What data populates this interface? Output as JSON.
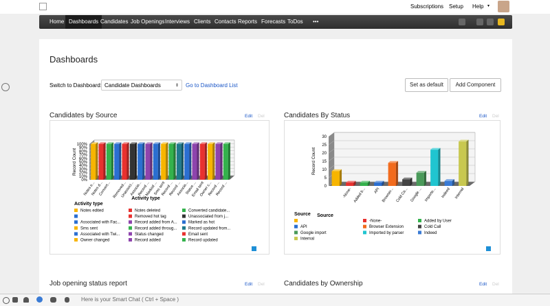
{
  "top_links": [
    "Subscriptions",
    "Setup",
    "Help"
  ],
  "nav": [
    "Home",
    "Dashboards",
    "Candidates",
    "Job Openings",
    "Interviews",
    "Clients",
    "Contacts",
    "Reports",
    "Forecasts",
    "ToDos",
    "•••"
  ],
  "page_title": "Dashboards",
  "switch_label": "Switch to Dashboard:",
  "dashboard_select": "Candidate Dashboards",
  "dashboard_list_link": "Go to Dashboard List",
  "buttons": [
    "Set as default",
    "Add Component"
  ],
  "widget_actions": [
    "Edit",
    "Del"
  ],
  "chart_data": [
    {
      "type": "bar3d",
      "title": "Candidates by Source",
      "ylabel": "Record Count",
      "xlabel": "Activity type",
      "legend_title": "Activity type",
      "categories": [
        "Notes edited",
        "Notes deleted",
        "Converted candidate...",
        null,
        "Removed  hot tag",
        "Unassociated from j...",
        "Associated with Fac...",
        "Record added from A...",
        "Marked as hot",
        "Sms sent",
        "Record added throug...",
        "Record updated from...",
        "Associated with Twi...",
        "Status changed",
        "Email sent",
        "Owner changed",
        "Record added",
        "Record updated"
      ],
      "x_labels": [
        "Notes e...",
        "Notes d...",
        "Convert...",
        null,
        "Removed...",
        "Unassoci...",
        "Associa...",
        "Record ...",
        "Marked ...",
        "Sms sent",
        "Record ...",
        "Record ...",
        "Associa...",
        "Status ...",
        "Email sent",
        "Owner c...",
        "Record ...",
        "Record ..."
      ],
      "values": [
        100,
        100,
        100,
        100,
        100,
        100,
        100,
        100,
        100,
        100,
        100,
        100,
        100,
        100,
        100,
        100,
        100,
        100
      ],
      "colors": [
        "#f7b500",
        "#e8312f",
        "#34b24c",
        "#2b6fd1",
        "#e8312f",
        "#333333",
        "#2b6fd1",
        "#8e44ad",
        "#2b6fd1",
        "#f7b500",
        "#34b24c",
        "#1f7a8c",
        "#2b6fd1",
        "#8e44ad",
        "#e8312f",
        "#f7b500",
        "#8e44ad",
        "#34b24c"
      ],
      "ylim": [
        0,
        100
      ],
      "yticks": [
        {
          "value": 0,
          "label": "0%"
        },
        {
          "value": 10,
          "label": "10%"
        },
        {
          "value": 20,
          "label": "20%"
        },
        {
          "value": 30,
          "label": "30%"
        },
        {
          "value": 40,
          "label": "40%"
        },
        {
          "value": 50,
          "label": "50%"
        },
        {
          "value": 60,
          "label": "60%"
        },
        {
          "value": 70,
          "label": "70%"
        },
        {
          "value": 80,
          "label": "80%"
        },
        {
          "value": 90,
          "label": "90%"
        },
        {
          "value": 100,
          "label": "100%"
        }
      ],
      "grid": true
    },
    {
      "type": "bar3d",
      "title": "Candidates By Status",
      "ylabel": "Record Count",
      "xlabel": "Source",
      "legend_title": "Source",
      "categories": [
        null,
        "-None-",
        "Added by User",
        "API",
        "Browser Extension",
        "Cold Call",
        "Google import",
        "Imported by parser",
        "Indeed",
        "Internal"
      ],
      "x_labels": [
        null,
        "-None-",
        "Added b...",
        "API",
        "Browser...",
        "Cold Ca...",
        "Google ...",
        "Importe...",
        "Indeed",
        "Internal"
      ],
      "values": [
        9,
        2,
        2,
        2,
        14,
        4,
        8,
        22,
        3,
        27
      ],
      "colors": [
        "#f7b500",
        "#e8312f",
        "#34b24c",
        "#2b6fd1",
        "#f26b1d",
        "#444444",
        "#4a9a5a",
        "#20c5d0",
        "#3a7bd5",
        "#c8c850"
      ],
      "ylim": [
        0,
        30
      ],
      "yticks": [
        0,
        5,
        10,
        15,
        20,
        25,
        30
      ],
      "grid": true
    }
  ],
  "more_widgets": [
    "Job opening status report",
    "Candidates by Ownership"
  ],
  "smart_chat": "Here is your Smart Chat ( Ctrl + Space )"
}
